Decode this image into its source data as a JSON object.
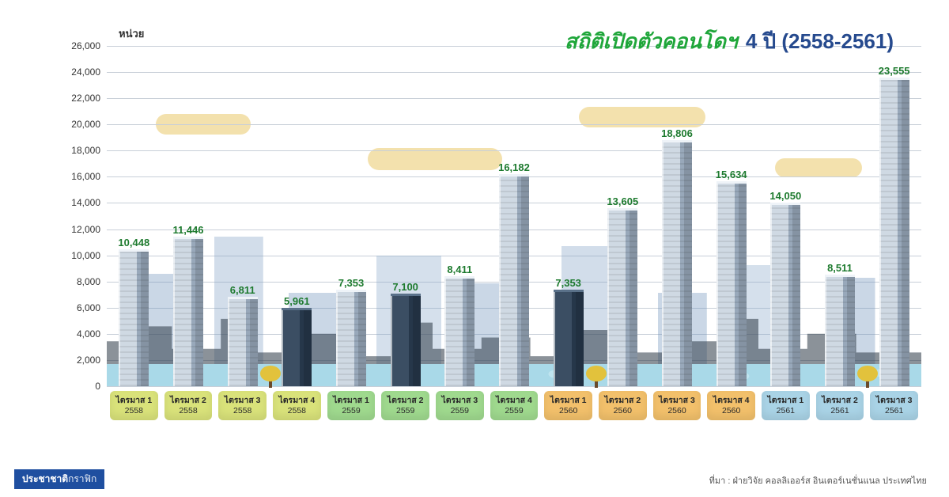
{
  "title": {
    "main_italic": "สถิติเปิดตัวคอนโดฯ",
    "rest": "4 ปี (2558-2561)",
    "main_color": "#1fa63a",
    "rest_color": "#264a8e",
    "fontsize": 26
  },
  "y_axis": {
    "title": "หน่วย",
    "min": 0,
    "max": 26000,
    "step": 2000,
    "tick_color": "#333333",
    "grid_color": "#c8cfd8"
  },
  "value_label_color": "#1d7a2e",
  "background_color": "#ffffff",
  "cloud_color": "#eac96a",
  "water_color": "#a9d9e8",
  "bar_building_light": "#cfd9e3",
  "bar_building_shadow": "#98a8ba",
  "bar_building_dark": "#3b4e63",
  "x_label_quarter_prefix": "ไตรมาส",
  "year_group_colors": {
    "2558": "#d9e27a",
    "2559": "#9fd98e",
    "2560": "#f2c06b",
    "2561": "#a9d3e6"
  },
  "data": [
    {
      "quarter": "1",
      "year": "2558",
      "value": 10448,
      "label": "10,448",
      "dark": false
    },
    {
      "quarter": "2",
      "year": "2558",
      "value": 11446,
      "label": "11,446",
      "dark": false
    },
    {
      "quarter": "3",
      "year": "2558",
      "value": 6811,
      "label": "6,811",
      "dark": false
    },
    {
      "quarter": "4",
      "year": "2558",
      "value": 5961,
      "label": "5,961",
      "dark": true
    },
    {
      "quarter": "1",
      "year": "2559",
      "value": 7353,
      "label": "7,353",
      "dark": false
    },
    {
      "quarter": "2",
      "year": "2559",
      "value": 7100,
      "label": "7,100",
      "dark": true
    },
    {
      "quarter": "3",
      "year": "2559",
      "value": 8411,
      "label": "8,411",
      "dark": false
    },
    {
      "quarter": "4",
      "year": "2559",
      "value": 16182,
      "label": "16,182",
      "dark": false
    },
    {
      "quarter": "1",
      "year": "2560",
      "value": 7353,
      "label": "7,353",
      "dark": true
    },
    {
      "quarter": "2",
      "year": "2560",
      "value": 13605,
      "label": "13,605",
      "dark": false
    },
    {
      "quarter": "3",
      "year": "2560",
      "value": 18806,
      "label": "18,806",
      "dark": false
    },
    {
      "quarter": "4",
      "year": "2560",
      "value": 15634,
      "label": "15,634",
      "dark": false
    },
    {
      "quarter": "1",
      "year": "2561",
      "value": 14050,
      "label": "14,050",
      "dark": false
    },
    {
      "quarter": "2",
      "year": "2561",
      "value": 8511,
      "label": "8,511",
      "dark": false
    },
    {
      "quarter": "3",
      "year": "2561",
      "value": 23555,
      "label": "23,555",
      "dark": false
    }
  ],
  "trees_at_index": [
    2,
    8,
    13
  ],
  "footer": {
    "badge_bold": "ประชาชาติ",
    "badge_light": "กราฟิก",
    "badge_bg": "#1f4fa0",
    "source": "ที่มา : ฝ่ายวิจัย คอลลิเออร์ส อินเตอร์เนชั่นแนล ประเทศไทย"
  },
  "chart_type": "bar_infographic_cityscape"
}
